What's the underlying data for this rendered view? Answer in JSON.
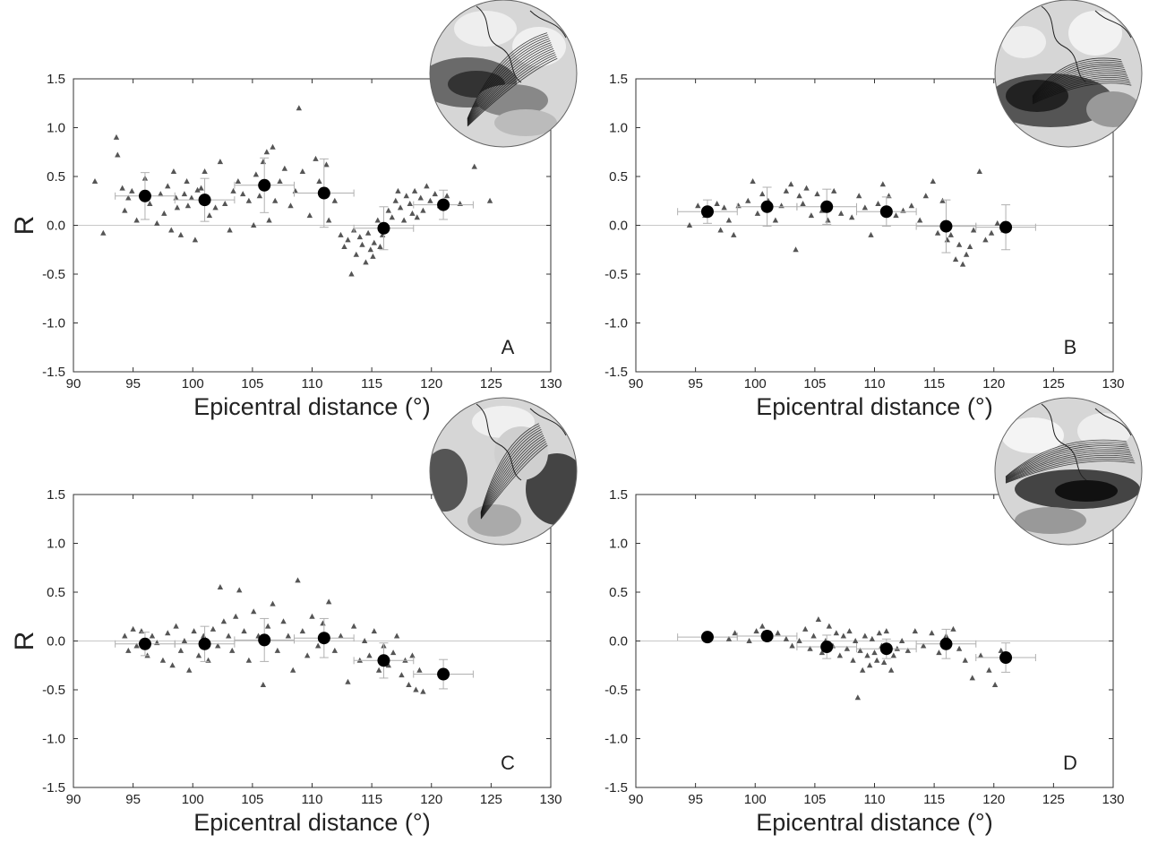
{
  "figure": {
    "panel_count": 4,
    "marker_colors": {
      "scatter": "#555555",
      "mean": "#000000",
      "errorbar": "#b0b0b0",
      "zero_line": "#c8c8c8",
      "axis": "#333333"
    }
  },
  "chart_data": [
    {
      "panel": "A",
      "type": "scatter",
      "xlabel": "Epicentral distance (°)",
      "ylabel": "R",
      "xlim": [
        90,
        130
      ],
      "ylim": [
        -1.5,
        1.5
      ],
      "xticks": [
        "90",
        "95",
        "100",
        "105",
        "110",
        "115",
        "120",
        "125",
        "130"
      ],
      "yticks": [
        "1.5",
        "1.0",
        "0.5",
        "0.0",
        "-0.5",
        "-1.0",
        "-1.5"
      ],
      "inset": "globe-map",
      "scatter": {
        "x": [
          91.8,
          92.5,
          93.6,
          93.7,
          94.1,
          94.3,
          94.6,
          94.9,
          95.3,
          96.0,
          96.4,
          97.0,
          97.3,
          97.6,
          97.9,
          98.2,
          98.4,
          98.6,
          98.7,
          99.0,
          99.3,
          99.5,
          99.6,
          99.9,
          100.2,
          100.4,
          100.7,
          101.0,
          101.4,
          101.9,
          102.3,
          102.7,
          103.1,
          103.4,
          103.8,
          104.2,
          104.7,
          105.1,
          105.3,
          105.6,
          105.9,
          106.2,
          106.4,
          106.7,
          106.9,
          107.3,
          107.7,
          108.2,
          108.6,
          108.9,
          109.2,
          109.8,
          110.3,
          110.6,
          111.2,
          111.4,
          111.9,
          112.4,
          112.7,
          113.0,
          113.3,
          113.5,
          113.7,
          114.0,
          114.2,
          114.5,
          114.7,
          114.9,
          115.1,
          115.2,
          115.5,
          115.7,
          115.9,
          116.1,
          116.4,
          116.7,
          117.0,
          117.2,
          117.4,
          117.7,
          117.9,
          118.2,
          118.4,
          118.6,
          118.8,
          119.1,
          119.3,
          119.6,
          119.9,
          120.3,
          120.7,
          121.3,
          122.4,
          123.6,
          124.9
        ],
        "y": [
          0.45,
          -0.08,
          0.9,
          0.72,
          0.38,
          0.15,
          0.28,
          0.35,
          0.05,
          0.48,
          0.22,
          0.02,
          0.32,
          0.12,
          0.4,
          -0.05,
          0.55,
          0.28,
          0.18,
          -0.1,
          0.32,
          0.45,
          0.2,
          0.28,
          -0.15,
          0.36,
          0.38,
          0.55,
          0.1,
          0.18,
          0.65,
          0.22,
          -0.05,
          0.35,
          0.45,
          0.32,
          0.25,
          0.0,
          0.52,
          0.3,
          0.65,
          0.75,
          0.05,
          0.8,
          0.25,
          0.45,
          0.58,
          0.2,
          0.35,
          1.2,
          0.55,
          0.1,
          0.68,
          0.45,
          0.62,
          0.05,
          0.25,
          -0.1,
          -0.22,
          -0.15,
          -0.5,
          -0.05,
          -0.3,
          -0.12,
          -0.2,
          -0.38,
          -0.08,
          -0.25,
          -0.32,
          -0.18,
          0.05,
          -0.22,
          -0.1,
          0.0,
          0.15,
          0.08,
          0.25,
          0.35,
          0.18,
          0.05,
          0.3,
          0.22,
          0.12,
          0.35,
          0.08,
          0.28,
          0.15,
          0.4,
          0.25,
          0.32,
          0.2,
          0.3,
          0.22,
          0.6,
          0.25
        ]
      },
      "means": {
        "x": [
          96,
          101,
          106,
          111,
          116,
          121
        ],
        "y": [
          0.3,
          0.26,
          0.41,
          0.33,
          -0.03,
          0.21
        ],
        "yerr": [
          0.24,
          0.22,
          0.28,
          0.35,
          0.22,
          0.15
        ],
        "xerr": [
          2.5,
          2.5,
          2.5,
          2.5,
          2.5,
          2.5
        ]
      }
    },
    {
      "panel": "B",
      "type": "scatter",
      "xlabel": "Epicentral distance (°)",
      "ylabel": "",
      "xlim": [
        90,
        130
      ],
      "ylim": [
        -1.5,
        1.5
      ],
      "xticks": [
        "90",
        "95",
        "100",
        "105",
        "110",
        "115",
        "120",
        "125",
        "130"
      ],
      "yticks": [
        "1.5",
        "1.0",
        "0.5",
        "0.0",
        "-0.5",
        "-1.0",
        "-1.5"
      ],
      "inset": "globe-map",
      "scatter": {
        "x": [
          94.5,
          95.2,
          95.8,
          96.3,
          96.8,
          97.1,
          97.4,
          97.8,
          98.2,
          98.6,
          99.4,
          99.8,
          100.2,
          100.6,
          101.1,
          101.7,
          102.2,
          102.6,
          103.0,
          103.4,
          103.7,
          104.0,
          104.3,
          104.7,
          105.2,
          105.6,
          106.1,
          106.6,
          107.2,
          108.1,
          108.7,
          109.2,
          109.7,
          110.3,
          110.7,
          111.2,
          111.8,
          112.4,
          113.1,
          113.8,
          114.3,
          114.9,
          115.3,
          115.7,
          116.1,
          116.4,
          116.8,
          117.1,
          117.4,
          117.7,
          118.0,
          118.3,
          118.8,
          119.3,
          119.8,
          120.3,
          120.8
        ],
        "y": [
          0.0,
          0.2,
          0.1,
          0.15,
          0.22,
          -0.05,
          0.18,
          0.05,
          -0.1,
          0.2,
          0.25,
          0.45,
          0.12,
          0.32,
          0.25,
          0.05,
          0.2,
          0.35,
          0.42,
          -0.25,
          0.3,
          0.22,
          0.38,
          0.1,
          0.32,
          0.15,
          0.05,
          0.35,
          0.12,
          0.08,
          0.3,
          0.18,
          -0.1,
          0.22,
          0.42,
          0.3,
          0.1,
          0.15,
          0.2,
          0.05,
          0.3,
          0.45,
          -0.08,
          0.25,
          -0.15,
          -0.1,
          -0.35,
          -0.2,
          -0.4,
          -0.3,
          -0.22,
          -0.05,
          0.55,
          -0.15,
          -0.08,
          0.02,
          -0.05
        ]
      },
      "means": {
        "x": [
          96,
          101,
          106,
          111,
          116,
          121
        ],
        "y": [
          0.14,
          0.19,
          0.19,
          0.14,
          -0.01,
          -0.02
        ],
        "yerr": [
          0.12,
          0.2,
          0.18,
          0.15,
          0.27,
          0.23
        ],
        "xerr": [
          2.5,
          2.5,
          2.5,
          2.5,
          2.5,
          2.5
        ]
      }
    },
    {
      "panel": "C",
      "type": "scatter",
      "xlabel": "Epicentral distance (°)",
      "ylabel": "R",
      "xlim": [
        90,
        130
      ],
      "ylim": [
        -1.5,
        1.5
      ],
      "xticks": [
        "90",
        "95",
        "100",
        "105",
        "110",
        "115",
        "120",
        "125",
        "130"
      ],
      "yticks": [
        "1.5",
        "1.0",
        "0.5",
        "0.0",
        "-0.5",
        "-1.0",
        "-1.5"
      ],
      "inset": "globe-map",
      "scatter": {
        "x": [
          94.3,
          94.6,
          95.0,
          95.3,
          95.7,
          96.2,
          96.6,
          97.0,
          97.5,
          97.9,
          98.3,
          98.6,
          99.0,
          99.3,
          99.7,
          100.1,
          100.5,
          100.9,
          101.3,
          101.7,
          102.1,
          102.3,
          102.6,
          103.0,
          103.3,
          103.6,
          103.9,
          104.3,
          104.7,
          105.1,
          105.5,
          105.9,
          106.3,
          106.7,
          107.1,
          107.6,
          108.0,
          108.4,
          108.8,
          109.2,
          109.6,
          110.0,
          110.5,
          110.9,
          111.4,
          111.9,
          112.4,
          113.0,
          113.5,
          114.0,
          114.4,
          114.8,
          115.2,
          115.6,
          116.0,
          116.4,
          116.8,
          117.1,
          117.5,
          117.8,
          118.1,
          118.4,
          118.7,
          119.0,
          119.3
        ],
        "y": [
          0.05,
          -0.1,
          0.12,
          -0.05,
          0.1,
          -0.15,
          0.05,
          -0.02,
          -0.2,
          0.08,
          -0.25,
          0.15,
          -0.1,
          0.0,
          -0.3,
          0.1,
          -0.15,
          0.05,
          -0.2,
          0.12,
          -0.05,
          0.55,
          0.2,
          0.05,
          -0.1,
          0.25,
          0.52,
          0.1,
          -0.2,
          0.3,
          0.05,
          -0.45,
          0.15,
          0.38,
          -0.1,
          0.2,
          0.05,
          -0.3,
          0.62,
          0.1,
          -0.15,
          0.25,
          -0.05,
          0.18,
          0.4,
          -0.1,
          0.05,
          -0.42,
          0.15,
          -0.2,
          0.0,
          -0.15,
          0.1,
          -0.3,
          -0.05,
          -0.25,
          -0.12,
          0.05,
          -0.35,
          -0.2,
          -0.45,
          -0.15,
          -0.5,
          -0.3,
          -0.52
        ]
      },
      "means": {
        "x": [
          96,
          101,
          106,
          111,
          116,
          121
        ],
        "y": [
          -0.03,
          -0.03,
          0.01,
          0.03,
          -0.2,
          -0.34
        ],
        "yerr": [
          0.12,
          0.18,
          0.22,
          0.2,
          0.18,
          0.15
        ],
        "xerr": [
          2.5,
          2.5,
          2.5,
          2.5,
          2.5,
          2.5
        ]
      }
    },
    {
      "panel": "D",
      "type": "scatter",
      "xlabel": "Epicentral distance (°)",
      "ylabel": "",
      "xlim": [
        90,
        130
      ],
      "ylim": [
        -1.5,
        1.5
      ],
      "xticks": [
        "90",
        "95",
        "100",
        "105",
        "110",
        "115",
        "120",
        "125",
        "130"
      ],
      "yticks": [
        "1.5",
        "1.0",
        "0.5",
        "0.0",
        "-0.5",
        "-1.0",
        "-1.5"
      ],
      "inset": "globe-map",
      "scatter": {
        "x": [
          97.8,
          98.3,
          99.5,
          100.1,
          100.6,
          101.3,
          101.9,
          102.6,
          103.1,
          103.7,
          104.2,
          104.6,
          104.9,
          105.3,
          105.6,
          105.9,
          106.2,
          106.5,
          106.8,
          107.1,
          107.4,
          107.7,
          107.9,
          108.2,
          108.4,
          108.6,
          108.8,
          109.0,
          109.2,
          109.4,
          109.6,
          109.8,
          110.0,
          110.2,
          110.4,
          110.6,
          110.8,
          111.0,
          111.2,
          111.4,
          111.6,
          111.9,
          112.3,
          112.8,
          113.4,
          114.1,
          114.8,
          115.4,
          116.0,
          116.6,
          117.1,
          117.6,
          118.2,
          118.9,
          119.6,
          120.1,
          120.6
        ],
        "y": [
          0.02,
          0.08,
          0.0,
          0.1,
          0.15,
          0.05,
          0.08,
          0.02,
          -0.05,
          0.0,
          0.12,
          -0.08,
          0.05,
          0.22,
          -0.12,
          0.0,
          0.15,
          -0.05,
          0.08,
          -0.15,
          0.05,
          -0.08,
          0.1,
          -0.2,
          0.0,
          -0.58,
          -0.1,
          -0.3,
          0.05,
          -0.15,
          -0.25,
          0.02,
          -0.12,
          -0.2,
          0.08,
          -0.05,
          -0.22,
          0.1,
          -0.1,
          -0.3,
          -0.15,
          -0.08,
          0.0,
          -0.1,
          0.1,
          -0.05,
          0.08,
          -0.12,
          0.05,
          0.12,
          -0.08,
          -0.2,
          -0.38,
          -0.15,
          -0.3,
          -0.45,
          -0.1
        ]
      },
      "means": {
        "x": [
          96,
          101,
          106,
          111,
          116,
          121
        ],
        "y": [
          0.04,
          0.05,
          -0.06,
          -0.08,
          -0.03,
          -0.17
        ],
        "yerr": [
          0.0,
          0.05,
          0.12,
          0.1,
          0.15,
          0.15
        ],
        "xerr": [
          2.5,
          2.5,
          2.5,
          2.5,
          2.5,
          2.5
        ]
      }
    }
  ]
}
